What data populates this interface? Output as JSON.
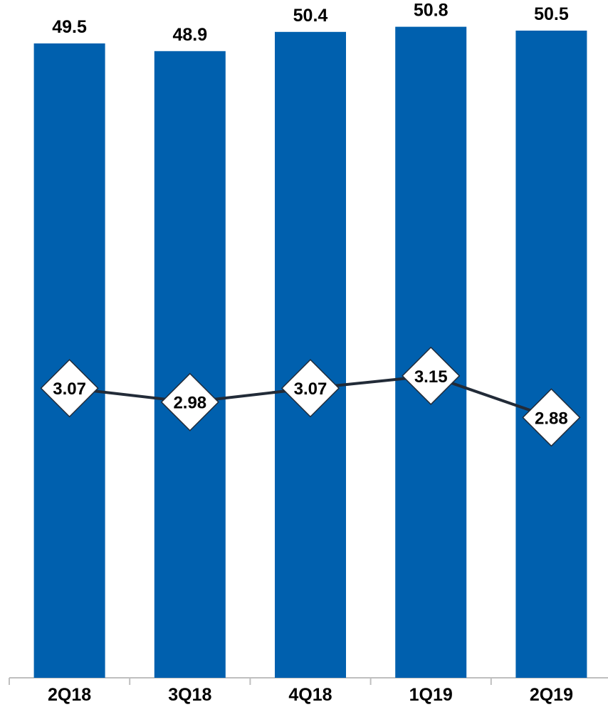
{
  "chart_data": {
    "type": "bar",
    "categories": [
      "2Q18",
      "3Q18",
      "4Q18",
      "1Q19",
      "2Q19"
    ],
    "series": [
      {
        "type": "bar",
        "values": [
          49.5,
          48.9,
          50.4,
          50.8,
          50.5
        ]
      },
      {
        "type": "line",
        "values": [
          3.07,
          2.98,
          3.07,
          3.15,
          2.88
        ]
      }
    ],
    "title": "",
    "xlabel": "",
    "ylabel": "",
    "grid": false,
    "legend": "none",
    "colors": {
      "bar": "#0060ae",
      "line": "#222b38",
      "marker_fill": "#ffffff",
      "marker_stroke": "#222b38"
    }
  }
}
